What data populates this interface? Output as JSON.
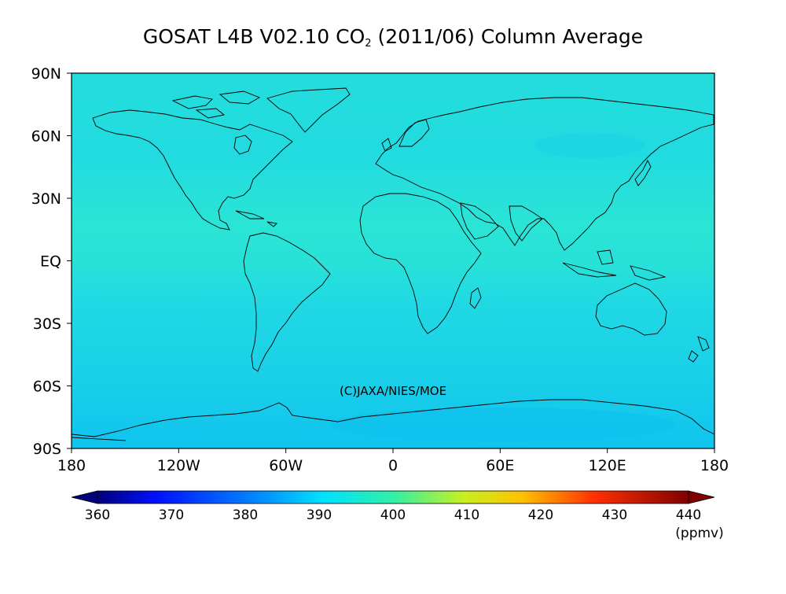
{
  "title": {
    "prefix": "GOSAT L4B V02.10 CO",
    "subscript": "2",
    "suffix": " (2011/06) Column Average"
  },
  "y_axis_labels": [
    "90N",
    "60N",
    "30N",
    "EQ",
    "30S",
    "60S",
    "90S"
  ],
  "x_axis_labels": [
    "180",
    "120W",
    "60W",
    "0",
    "60E",
    "120E",
    "180"
  ],
  "watermark": "(C)JAXA/NIES/MOE",
  "colorbar": {
    "ticks": [
      "360",
      "370",
      "380",
      "390",
      "400",
      "410",
      "420",
      "430",
      "440"
    ],
    "unit": "(ppmv)",
    "range": [
      360,
      440
    ],
    "colors": [
      "#00007a",
      "#0000ff",
      "#0088ff",
      "#00e8ff",
      "#28f0b8",
      "#c8f020",
      "#ffc800",
      "#ff3000",
      "#8a0000"
    ]
  },
  "map": {
    "projection": "equirectangular",
    "lon_range": [
      -180,
      180
    ],
    "lat_range": [
      -90,
      90
    ],
    "field_colors": {
      "north_high_lat": "#22e0dc",
      "tropics": "#2be6d4",
      "southern": "#1fd6e6",
      "antarctic": "#12c8ec"
    }
  }
}
